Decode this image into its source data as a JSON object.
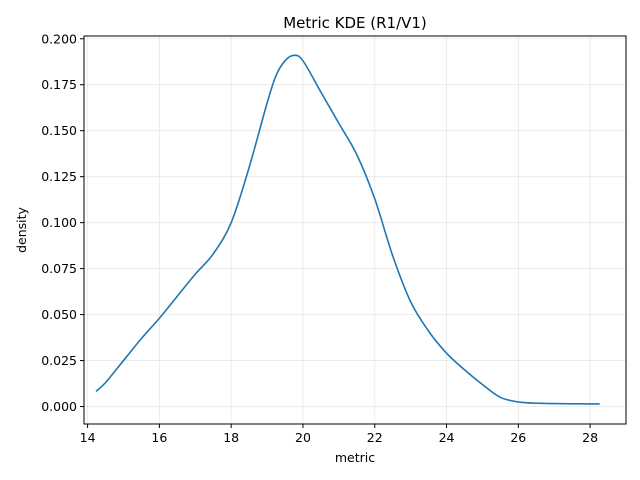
{
  "chart_data": {
    "type": "line",
    "title": "Metric KDE (R1/V1)",
    "xlabel": "metric",
    "ylabel": "density",
    "xlim": [
      13.9,
      29.0
    ],
    "ylim": [
      -0.0095,
      0.2015
    ],
    "xticks": [
      14,
      16,
      18,
      20,
      22,
      24,
      26,
      28
    ],
    "xtick_labels": [
      "14",
      "16",
      "18",
      "20",
      "22",
      "24",
      "26",
      "28"
    ],
    "yticks": [
      0.0,
      0.025,
      0.05,
      0.075,
      0.1,
      0.125,
      0.15,
      0.175,
      0.2
    ],
    "ytick_labels": [
      "0.000",
      "0.025",
      "0.050",
      "0.075",
      "0.100",
      "0.125",
      "0.150",
      "0.175",
      "0.200"
    ],
    "grid": true,
    "color": "#1f77b4",
    "series": [
      {
        "x": [
          14.25,
          14.5,
          15.0,
          15.5,
          16.0,
          16.5,
          17.0,
          17.5,
          18.0,
          18.5,
          19.0,
          19.25,
          19.5,
          19.75,
          20.0,
          20.5,
          21.0,
          21.5,
          22.0,
          22.5,
          23.0,
          23.5,
          24.0,
          24.5,
          25.0,
          25.5,
          26.0,
          26.5,
          27.0,
          27.5,
          28.0,
          28.25
        ],
        "y": [
          0.0085,
          0.013,
          0.025,
          0.037,
          0.048,
          0.06,
          0.072,
          0.083,
          0.1,
          0.13,
          0.165,
          0.18,
          0.188,
          0.191,
          0.188,
          0.171,
          0.154,
          0.137,
          0.113,
          0.082,
          0.057,
          0.041,
          0.029,
          0.02,
          0.012,
          0.005,
          0.0025,
          0.0018,
          0.0016,
          0.0015,
          0.0014,
          0.0014
        ]
      }
    ]
  }
}
